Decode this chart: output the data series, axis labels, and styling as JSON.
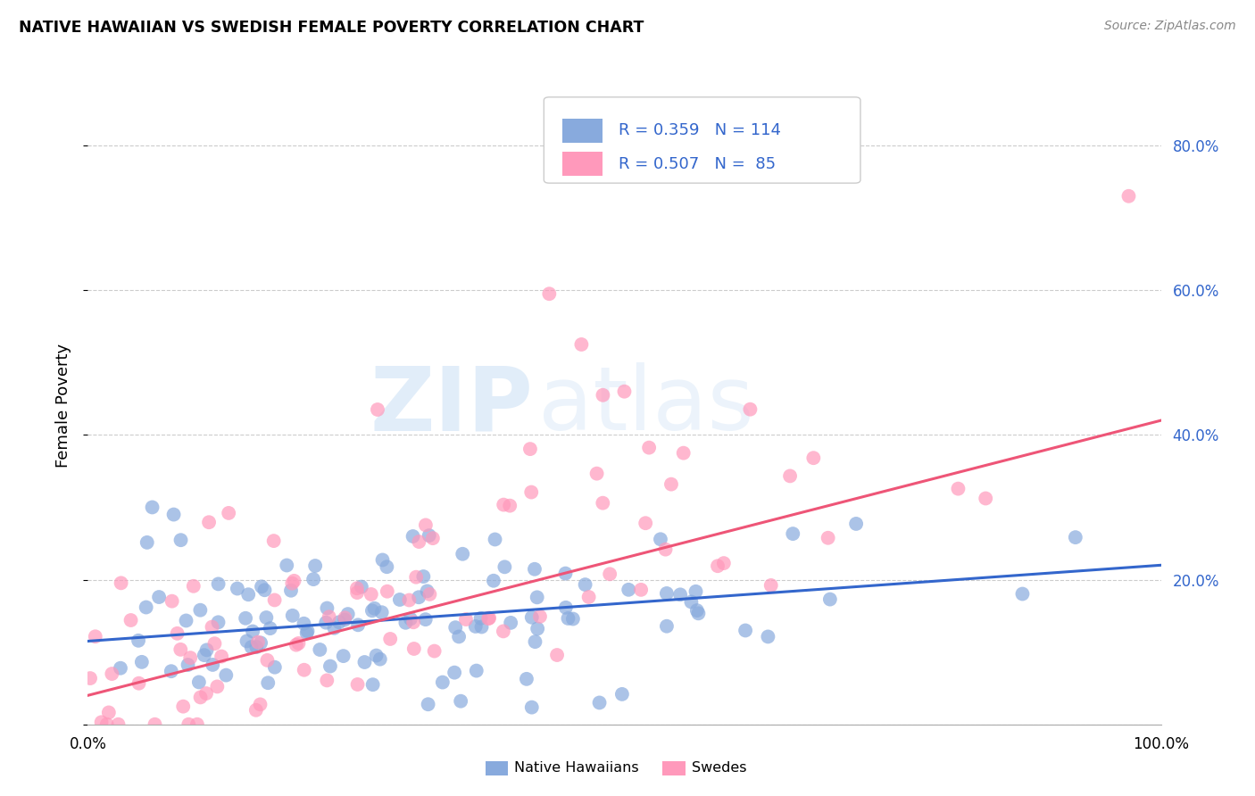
{
  "title": "NATIVE HAWAIIAN VS SWEDISH FEMALE POVERTY CORRELATION CHART",
  "source": "Source: ZipAtlas.com",
  "ylabel": "Female Poverty",
  "xlim": [
    0.0,
    1.0
  ],
  "ylim": [
    0.0,
    0.88
  ],
  "yticks": [
    0.0,
    0.2,
    0.4,
    0.6,
    0.8
  ],
  "right_ytick_labels": [
    "",
    "20.0%",
    "40.0%",
    "60.0%",
    "80.0%"
  ],
  "xticks": [
    0.0,
    0.125,
    0.25,
    0.375,
    0.5,
    0.625,
    0.75,
    0.875,
    1.0
  ],
  "xtick_labels": [
    "0.0%",
    "",
    "",
    "",
    "",
    "",
    "",
    "",
    "100.0%"
  ],
  "blue_color": "#88AADD",
  "pink_color": "#FF99BB",
  "blue_line_color": "#3366CC",
  "pink_line_color": "#EE5577",
  "legend_R_blue": "0.359",
  "legend_N_blue": "114",
  "legend_R_pink": "0.507",
  "legend_N_pink": " 85",
  "watermark_zip": "ZIP",
  "watermark_atlas": "atlas",
  "blue_R": 0.359,
  "blue_N": 114,
  "pink_R": 0.507,
  "pink_N": 85,
  "blue_intercept": 0.115,
  "blue_slope": 0.105,
  "pink_intercept": 0.04,
  "pink_slope": 0.38,
  "background_color": "#FFFFFF",
  "grid_color": "#CCCCCC",
  "text_color_blue": "#3366CC",
  "label_color": "#666666"
}
